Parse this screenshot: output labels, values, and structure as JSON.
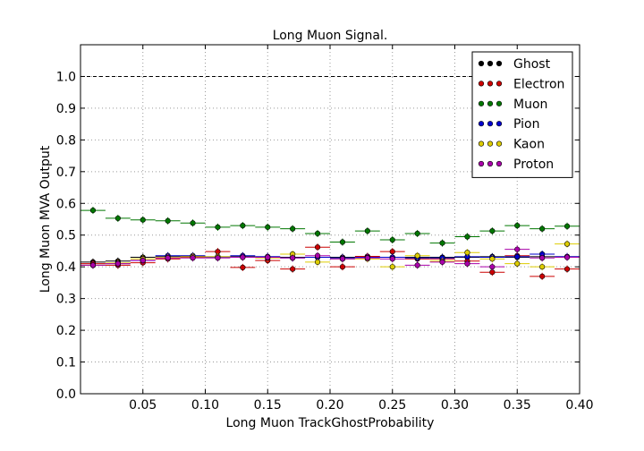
{
  "chart_data": {
    "type": "scatter",
    "title": "Long Muon Signal.",
    "xlabel": "Long Muon TrackGhostProbability",
    "ylabel": "Long Muon MVA Output",
    "xlim": [
      0.0,
      0.4
    ],
    "ylim": [
      0.0,
      1.1
    ],
    "x_ticks": [
      "0.05",
      "0.10",
      "0.15",
      "0.20",
      "0.25",
      "0.30",
      "0.35",
      "0.40"
    ],
    "y_ticks": [
      "0.0",
      "0.1",
      "0.2",
      "0.3",
      "0.4",
      "0.5",
      "0.6",
      "0.7",
      "0.8",
      "0.9",
      "1.0"
    ],
    "grid": true,
    "legend_position": "top-right",
    "reference_line": 1.0,
    "bin_half_width": 0.01,
    "x": [
      0.01,
      0.03,
      0.05,
      0.07,
      0.09,
      0.11,
      0.13,
      0.15,
      0.17,
      0.19,
      0.21,
      0.23,
      0.25,
      0.27,
      0.29,
      0.31,
      0.33,
      0.35,
      0.37,
      0.39
    ],
    "series": [
      {
        "name": "Ghost",
        "color": "#000000",
        "values": [
          0.415,
          0.418,
          0.43,
          0.432,
          0.433,
          0.432,
          0.432,
          0.432,
          0.43,
          0.43,
          0.43,
          0.43,
          0.43,
          0.43,
          0.43,
          0.43,
          0.432,
          0.43,
          0.432,
          0.432
        ]
      },
      {
        "name": "Electron",
        "color": "#cc0000",
        "values": [
          0.41,
          0.405,
          0.413,
          0.425,
          0.43,
          0.448,
          0.398,
          0.42,
          0.393,
          0.462,
          0.4,
          0.433,
          0.448,
          0.425,
          0.425,
          0.418,
          0.383,
          0.435,
          0.37,
          0.393
        ]
      },
      {
        "name": "Muon",
        "color": "#007700",
        "values": [
          0.578,
          0.553,
          0.548,
          0.545,
          0.538,
          0.525,
          0.53,
          0.525,
          0.52,
          0.505,
          0.478,
          0.513,
          0.485,
          0.505,
          0.475,
          0.495,
          0.513,
          0.53,
          0.52,
          0.528
        ]
      },
      {
        "name": "Pion",
        "color": "#0000cc",
        "values": [
          0.405,
          0.41,
          0.42,
          0.435,
          0.435,
          0.43,
          0.435,
          0.432,
          0.428,
          0.43,
          0.428,
          0.43,
          0.43,
          0.428,
          0.428,
          0.432,
          0.43,
          0.432,
          0.44,
          0.432
        ]
      },
      {
        "name": "Kaon",
        "color": "#ddcc00",
        "values": [
          0.405,
          0.412,
          0.425,
          0.43,
          0.432,
          0.432,
          0.43,
          0.428,
          0.44,
          0.415,
          0.425,
          0.425,
          0.4,
          0.435,
          0.418,
          0.445,
          0.425,
          0.41,
          0.4,
          0.472
        ]
      },
      {
        "name": "Proton",
        "color": "#aa00aa",
        "values": [
          0.405,
          0.41,
          0.42,
          0.428,
          0.428,
          0.428,
          0.43,
          0.43,
          0.428,
          0.435,
          0.425,
          0.428,
          0.425,
          0.405,
          0.415,
          0.41,
          0.4,
          0.455,
          0.428,
          0.43
        ]
      }
    ]
  }
}
